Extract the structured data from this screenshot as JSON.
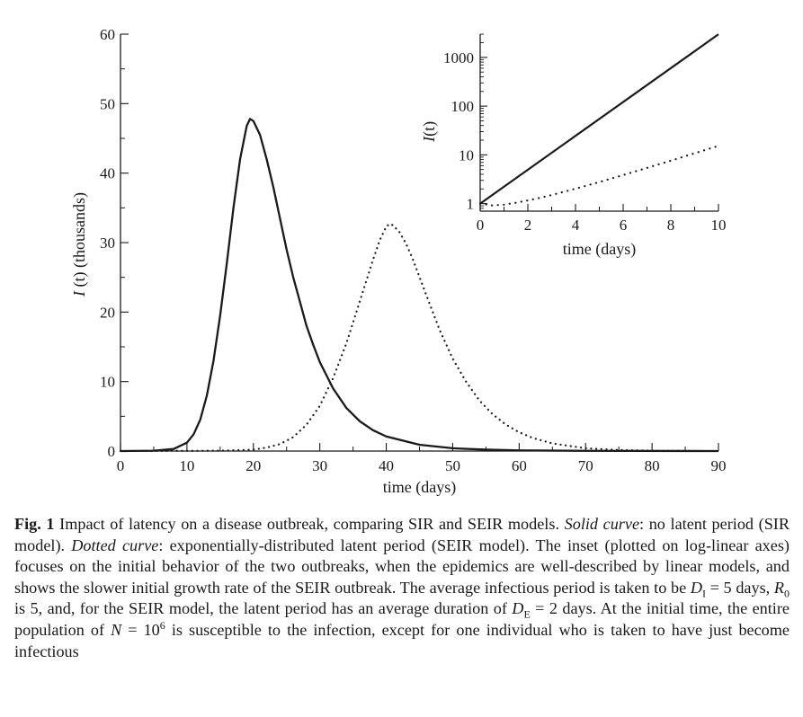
{
  "chart_data": [
    {
      "type": "line",
      "xlabel": "time (days)",
      "ylabel_var": "I",
      "ylabel_rest": " (t) (thousands)",
      "xlim": [
        0,
        90
      ],
      "ylim": [
        0,
        60
      ],
      "x_ticks": [
        "0",
        "10",
        "20",
        "30",
        "40",
        "50",
        "60",
        "70",
        "80",
        "90"
      ],
      "y_ticks": [
        "0",
        "10",
        "20",
        "30",
        "40",
        "50",
        "60"
      ],
      "grid": false,
      "legend": "none",
      "series": [
        {
          "style": "solid",
          "points": [
            [
              0,
              0
            ],
            [
              5,
              0.05
            ],
            [
              8,
              0.3
            ],
            [
              10,
              1.2
            ],
            [
              11,
              2.4
            ],
            [
              12,
              4.5
            ],
            [
              13,
              8
            ],
            [
              14,
              13
            ],
            [
              15,
              19.5
            ],
            [
              16,
              27
            ],
            [
              17,
              35
            ],
            [
              18,
              42
            ],
            [
              19,
              46.8
            ],
            [
              19.5,
              47.8
            ],
            [
              20,
              47.5
            ],
            [
              21,
              45.5
            ],
            [
              22,
              42
            ],
            [
              23,
              38
            ],
            [
              24,
              33.5
            ],
            [
              25,
              29
            ],
            [
              26,
              25
            ],
            [
              27,
              21.5
            ],
            [
              28,
              18
            ],
            [
              29,
              15.3
            ],
            [
              30,
              12.8
            ],
            [
              32,
              9
            ],
            [
              34,
              6.2
            ],
            [
              36,
              4.3
            ],
            [
              38,
              3
            ],
            [
              40,
              2.1
            ],
            [
              45,
              0.9
            ],
            [
              50,
              0.4
            ],
            [
              55,
              0.2
            ],
            [
              60,
              0.1
            ],
            [
              70,
              0.03
            ],
            [
              90,
              0
            ]
          ]
        },
        {
          "style": "dotted",
          "points": [
            [
              0,
              0
            ],
            [
              15,
              0.05
            ],
            [
              20,
              0.2
            ],
            [
              22,
              0.5
            ],
            [
              24,
              1
            ],
            [
              26,
              2
            ],
            [
              28,
              3.8
            ],
            [
              30,
              6.5
            ],
            [
              32,
              10.5
            ],
            [
              34,
              15.5
            ],
            [
              36,
              21.5
            ],
            [
              38,
              27.5
            ],
            [
              39,
              30.3
            ],
            [
              40,
              32.3
            ],
            [
              40.5,
              32.7
            ],
            [
              41,
              32.5
            ],
            [
              42,
              31.5
            ],
            [
              43,
              29.8
            ],
            [
              44,
              27.6
            ],
            [
              46,
              22.5
            ],
            [
              48,
              17.5
            ],
            [
              50,
              13.3
            ],
            [
              52,
              10
            ],
            [
              54,
              7.3
            ],
            [
              56,
              5.3
            ],
            [
              58,
              3.8
            ],
            [
              60,
              2.7
            ],
            [
              62,
              1.9
            ],
            [
              65,
              1.1
            ],
            [
              70,
              0.4
            ],
            [
              75,
              0.15
            ],
            [
              80,
              0.05
            ],
            [
              90,
              0
            ]
          ]
        }
      ]
    },
    {
      "type": "line",
      "inset": true,
      "xlabel": "time (days)",
      "ylabel_var": "I",
      "ylabel_rest": "(t)",
      "xlim": [
        0,
        10
      ],
      "ylim": [
        0.7,
        3000
      ],
      "yscale": "log",
      "x_ticks": [
        "0",
        "2",
        "4",
        "6",
        "8",
        "10"
      ],
      "y_ticks": [
        {
          "value": 1,
          "label": "1"
        },
        {
          "value": 10,
          "label": "10"
        },
        {
          "value": 100,
          "label": "100"
        },
        {
          "value": 1000,
          "label": "1000"
        }
      ],
      "grid": false,
      "legend": "none",
      "series": [
        {
          "style": "solid",
          "points": [
            [
              0,
              1
            ],
            [
              10,
              2980
            ]
          ]
        },
        {
          "style": "dotted",
          "points": [
            [
              0,
              1
            ],
            [
              0.5,
              0.92
            ],
            [
              1,
              0.95
            ],
            [
              1.5,
              1.04
            ],
            [
              2,
              1.16
            ],
            [
              2.5,
              1.31
            ],
            [
              3,
              1.5
            ],
            [
              4,
              2.02
            ],
            [
              5,
              2.77
            ],
            [
              6,
              3.85
            ],
            [
              7,
              5.4
            ],
            [
              8,
              7.6
            ],
            [
              9,
              10.8
            ],
            [
              10,
              15.3
            ]
          ]
        }
      ]
    }
  ],
  "caption": {
    "fig_label": "Fig. 1",
    "t1": " Impact of latency on a disease outbreak, comparing SIR and SEIR models. ",
    "solid": "Solid curve",
    "t2": ": no latent period (SIR model). ",
    "dotted": "Dotted curve",
    "t3": ": exponentially-distributed latent period (SEIR model). The inset (plotted on log-linear axes) focuses on the initial behavior of the two outbreaks, when the epidemics are well-described by linear models, and shows the slower initial growth rate of the SEIR outbreak. The average infectious period is taken to be ",
    "di_var": "D",
    "di_sub": "I",
    "t4": " = 5 days, ",
    "r_var": "R",
    "r_sub": "0",
    "t5": " is 5, and, for the SEIR model, the latent period has an average duration of ",
    "de_var": "D",
    "de_sub": "E",
    "t6": " = 2 days. At the initial time, the entire population of ",
    "n_var": "N",
    "t7": " = 10",
    "n_sup": "6",
    "t8": " is susceptible to the infection, except for one individual who is taken to have just become infectious"
  }
}
